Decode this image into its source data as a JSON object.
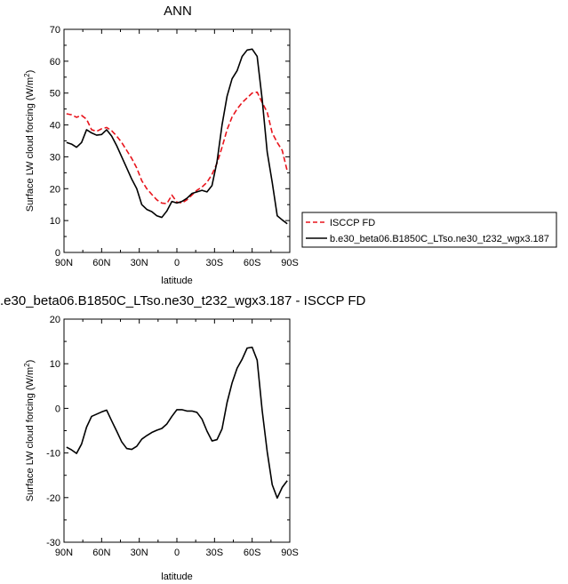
{
  "chart_data": [
    {
      "type": "line",
      "title": "ANN",
      "xlabel": "latitude",
      "ylabel_main": "Surface LW cloud forcing (W/m",
      "ylabel_sup": "2",
      "ylabel_close": ")",
      "xlim": [
        90,
        -90
      ],
      "ylim": [
        0,
        70
      ],
      "xticks": [
        90,
        60,
        30,
        0,
        -30,
        -60,
        -90
      ],
      "xtick_labels": [
        "90N",
        "60N",
        "30N",
        "0",
        "30S",
        "60S",
        "90S"
      ],
      "yticks": [
        0,
        10,
        20,
        30,
        40,
        50,
        60,
        70
      ],
      "ytick_labels": [
        "0",
        "10",
        "20",
        "30",
        "40",
        "50",
        "60",
        "70"
      ],
      "legend_position": "outside-right",
      "series": [
        {
          "name": "ISCCP FD",
          "color": "#e8141c",
          "dash": "dashed",
          "x": [
            88,
            84,
            80,
            76,
            72,
            68,
            64,
            60,
            56,
            52,
            48,
            44,
            40,
            36,
            32,
            28,
            24,
            20,
            16,
            12,
            8,
            4,
            0,
            -4,
            -8,
            -12,
            -16,
            -20,
            -24,
            -28,
            -32,
            -36,
            -40,
            -44,
            -48,
            -52,
            -56,
            -60,
            -64,
            -68,
            -72,
            -76,
            -80,
            -84,
            -88
          ],
          "y": [
            43.5,
            43.2,
            42.4,
            43.0,
            41.8,
            38.5,
            38.0,
            38.8,
            39.2,
            38.2,
            36.5,
            34.5,
            32.0,
            29.5,
            26.5,
            22.5,
            20.0,
            18.2,
            16.5,
            15.5,
            15.3,
            18.0,
            15.8,
            15.5,
            16.5,
            18.0,
            19.5,
            20.5,
            22.0,
            24.5,
            28.0,
            33.0,
            38.5,
            42.5,
            45.0,
            47.0,
            48.5,
            50.0,
            50.3,
            47.0,
            44.0,
            37.5,
            34.5,
            32.0,
            25.5
          ]
        },
        {
          "name": "b.e30_beta06.B1850C_LTso.ne30_t232_wgx3.187",
          "color": "#000000",
          "dash": "solid",
          "x": [
            88,
            84,
            80,
            76,
            72,
            68,
            64,
            60,
            56,
            52,
            48,
            44,
            40,
            36,
            32,
            28,
            24,
            20,
            16,
            12,
            8,
            4,
            0,
            -4,
            -8,
            -12,
            -16,
            -20,
            -24,
            -28,
            -32,
            -36,
            -40,
            -44,
            -48,
            -52,
            -56,
            -60,
            -64,
            -68,
            -72,
            -76,
            -80,
            -84,
            -88
          ],
          "y": [
            34.5,
            34.0,
            33.0,
            34.5,
            38.5,
            37.5,
            36.8,
            37.0,
            38.5,
            36.5,
            33.5,
            30.0,
            26.5,
            23.0,
            20.0,
            15.0,
            13.5,
            12.8,
            11.5,
            11.0,
            13.0,
            16.0,
            15.5,
            16.0,
            17.0,
            18.5,
            19.0,
            19.5,
            19.0,
            21.0,
            28.5,
            40.0,
            49.0,
            54.5,
            57.0,
            61.5,
            63.5,
            63.8,
            61.5,
            48.0,
            31.5,
            22.0,
            11.5,
            10.2,
            9.0
          ]
        }
      ]
    },
    {
      "type": "line",
      "title": ".e30_beta06.B1850C_LTso.ne30_t232_wgx3.187 - ISCCP FD",
      "xlabel": "latitude",
      "ylabel_main": "Surface LW cloud forcing (W/m",
      "ylabel_sup": "2",
      "ylabel_close": ")",
      "xlim": [
        90,
        -90
      ],
      "ylim": [
        -30,
        20
      ],
      "xticks": [
        90,
        60,
        30,
        0,
        -30,
        -60,
        -90
      ],
      "xtick_labels": [
        "90N",
        "60N",
        "30N",
        "0",
        "30S",
        "60S",
        "90S"
      ],
      "yticks": [
        -30,
        -20,
        -10,
        0,
        10,
        20
      ],
      "ytick_labels": [
        "-30",
        "-20",
        "-10",
        "0",
        "10",
        "20"
      ],
      "series": [
        {
          "color": "#000000",
          "dash": "solid",
          "x": [
            88,
            84,
            80,
            76,
            72,
            68,
            64,
            60,
            56,
            52,
            48,
            44,
            40,
            36,
            32,
            28,
            24,
            20,
            16,
            12,
            8,
            4,
            0,
            -4,
            -8,
            -12,
            -16,
            -20,
            -24,
            -28,
            -32,
            -36,
            -40,
            -44,
            -48,
            -52,
            -56,
            -60,
            -64,
            -68,
            -72,
            -76,
            -80,
            -84,
            -88
          ],
          "y": [
            -8.7,
            -9.3,
            -10.1,
            -8.0,
            -4.2,
            -1.8,
            -1.3,
            -0.8,
            -0.4,
            -2.8,
            -5.1,
            -7.5,
            -9.0,
            -9.2,
            -8.5,
            -6.9,
            -6.1,
            -5.4,
            -4.9,
            -4.5,
            -3.5,
            -1.8,
            -0.3,
            -0.3,
            -0.6,
            -0.6,
            -0.9,
            -2.4,
            -5.1,
            -7.3,
            -7.0,
            -4.6,
            1.3,
            5.7,
            9.0,
            11.0,
            13.5,
            13.7,
            10.8,
            -0.5,
            -9.7,
            -17.1,
            -20.1,
            -17.7,
            -16.2
          ]
        }
      ]
    }
  ]
}
